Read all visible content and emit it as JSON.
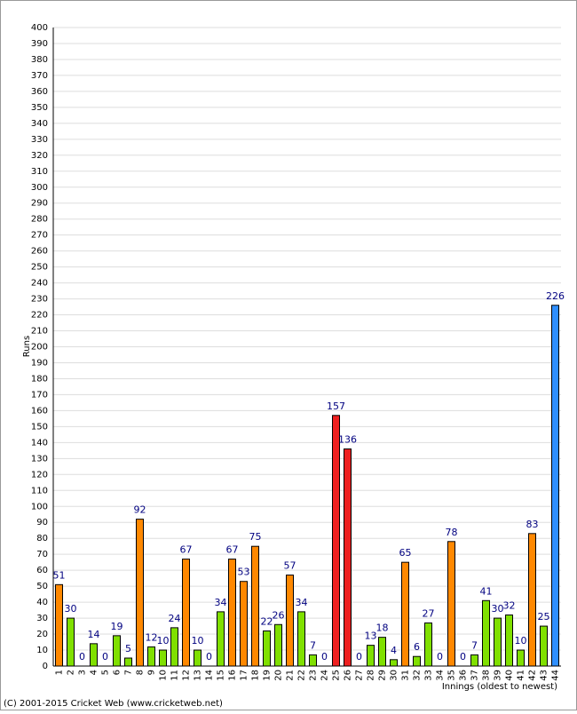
{
  "chart_data": {
    "type": "bar",
    "y_label": "Runs",
    "x_label": "Innings (oldest to newest)",
    "footer": "(C) 2001-2015 Cricket Web (www.cricketweb.net)",
    "categories": [
      "1",
      "2",
      "3",
      "4",
      "5",
      "6",
      "7",
      "8",
      "9",
      "10",
      "11",
      "12",
      "13",
      "14",
      "15",
      "16",
      "17",
      "18",
      "19",
      "20",
      "21",
      "22",
      "23",
      "24",
      "25",
      "26",
      "27",
      "28",
      "29",
      "30",
      "31",
      "32",
      "33",
      "34",
      "35",
      "36",
      "37",
      "38",
      "39",
      "40",
      "41",
      "42",
      "43",
      "44"
    ],
    "values": [
      51,
      30,
      0,
      14,
      0,
      19,
      5,
      92,
      12,
      10,
      24,
      67,
      10,
      0,
      34,
      67,
      53,
      75,
      22,
      26,
      57,
      34,
      7,
      0,
      157,
      136,
      0,
      13,
      18,
      4,
      65,
      6,
      27,
      0,
      78,
      0,
      7,
      41,
      30,
      32,
      10,
      83,
      25,
      226
    ],
    "colors": [
      "#ff8800",
      "#80e000",
      "#80e000",
      "#80e000",
      "#80e000",
      "#80e000",
      "#80e000",
      "#ff8800",
      "#80e000",
      "#80e000",
      "#80e000",
      "#ff8800",
      "#80e000",
      "#80e000",
      "#80e000",
      "#ff8800",
      "#ff8800",
      "#ff8800",
      "#80e000",
      "#80e000",
      "#ff8800",
      "#80e000",
      "#80e000",
      "#80e000",
      "#ee2020",
      "#ee2020",
      "#80e000",
      "#80e000",
      "#80e000",
      "#80e000",
      "#ff8800",
      "#80e000",
      "#80e000",
      "#80e000",
      "#ff8800",
      "#80e000",
      "#80e000",
      "#80e000",
      "#80e000",
      "#80e000",
      "#80e000",
      "#ff8800",
      "#80e000",
      "#2f8fff"
    ],
    "ylim": [
      0,
      400
    ],
    "yticks": [
      0,
      10,
      20,
      30,
      40,
      50,
      60,
      70,
      80,
      90,
      100,
      110,
      120,
      130,
      140,
      150,
      160,
      170,
      180,
      190,
      200,
      210,
      220,
      230,
      240,
      250,
      260,
      270,
      280,
      290,
      300,
      310,
      320,
      330,
      340,
      350,
      360,
      370,
      380,
      390,
      400
    ],
    "grid": true
  }
}
